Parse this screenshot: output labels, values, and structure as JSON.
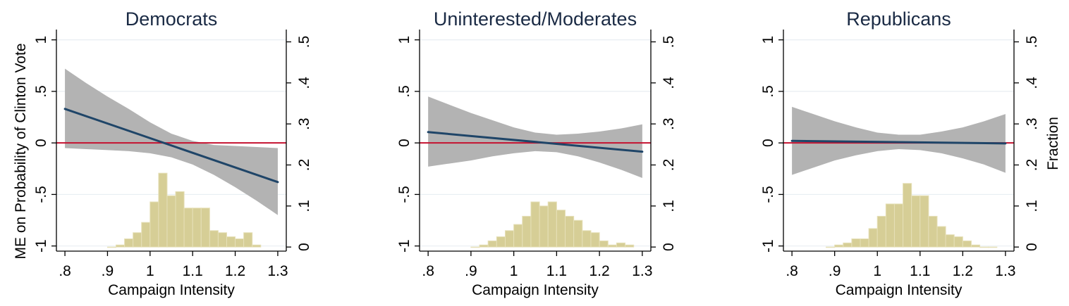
{
  "figure": {
    "ylabel_left": "ME on Probability of Clinton Vote",
    "ylabel_right": "Fraction"
  },
  "colors": {
    "line": "#1f4568",
    "ci": "#b3b3b3",
    "zero_line": "#c41230",
    "bars": "#d6ce96",
    "bar_edge": "#e6e0b8",
    "grid": "#e8eef2"
  },
  "chart_data": [
    {
      "type": "line",
      "title": "Democrats",
      "xlabel": "Campaign Intensity",
      "xlim": [
        0.78,
        1.32
      ],
      "ylim": [
        -1.05,
        1.1
      ],
      "y2lim": [
        -0.01,
        0.53
      ],
      "xticks": [
        0.8,
        0.9,
        1.0,
        1.1,
        1.2,
        1.3
      ],
      "xtick_labels": [
        ".8",
        ".9",
        "1",
        "1.1",
        "1.2",
        "1.3"
      ],
      "yticks": [
        -1,
        -0.5,
        0,
        0.5,
        1
      ],
      "ytick_labels": [
        "-1",
        "-.5",
        "0",
        ".5",
        "1"
      ],
      "y2ticks": [
        0,
        0.1,
        0.2,
        0.3,
        0.4,
        0.5
      ],
      "y2tick_labels": [
        "0",
        ".1",
        ".2",
        ".3",
        ".4",
        ".5"
      ],
      "ci_x": [
        0.8,
        0.85,
        0.9,
        0.95,
        1.0,
        1.05,
        1.1,
        1.15,
        1.2,
        1.25,
        1.3
      ],
      "ci_upper": [
        0.72,
        0.58,
        0.45,
        0.33,
        0.2,
        0.09,
        0.02,
        -0.02,
        -0.03,
        -0.04,
        -0.05
      ],
      "ci_lower": [
        -0.05,
        -0.06,
        -0.07,
        -0.08,
        -0.1,
        -0.14,
        -0.21,
        -0.31,
        -0.43,
        -0.56,
        -0.7
      ],
      "line_x": [
        0.8,
        1.3
      ],
      "line_y": [
        0.33,
        -0.38
      ],
      "hist": [
        {
          "x": 0.91,
          "f": 0.0
        },
        {
          "x": 0.93,
          "f": 0.005
        },
        {
          "x": 0.95,
          "f": 0.02
        },
        {
          "x": 0.97,
          "f": 0.035
        },
        {
          "x": 0.99,
          "f": 0.06
        },
        {
          "x": 1.01,
          "f": 0.11
        },
        {
          "x": 1.03,
          "f": 0.18
        },
        {
          "x": 1.05,
          "f": 0.125
        },
        {
          "x": 1.07,
          "f": 0.135
        },
        {
          "x": 1.09,
          "f": 0.095
        },
        {
          "x": 1.11,
          "f": 0.095
        },
        {
          "x": 1.13,
          "f": 0.095
        },
        {
          "x": 1.15,
          "f": 0.04
        },
        {
          "x": 1.17,
          "f": 0.035
        },
        {
          "x": 1.19,
          "f": 0.025
        },
        {
          "x": 1.21,
          "f": 0.02
        },
        {
          "x": 1.23,
          "f": 0.035
        },
        {
          "x": 1.25,
          "f": 0.005
        }
      ]
    },
    {
      "type": "line",
      "title": "Uninterested/Moderates",
      "xlabel": "Campaign Intensity",
      "xlim": [
        0.78,
        1.32
      ],
      "ylim": [
        -1.05,
        1.1
      ],
      "y2lim": [
        -0.01,
        0.53
      ],
      "xticks": [
        0.8,
        0.9,
        1.0,
        1.1,
        1.2,
        1.3
      ],
      "xtick_labels": [
        ".8",
        ".9",
        "1",
        "1.1",
        "1.2",
        "1.3"
      ],
      "yticks": [
        -1,
        -0.5,
        0,
        0.5,
        1
      ],
      "ytick_labels": [
        "-1",
        "-.5",
        "0",
        ".5",
        "1"
      ],
      "y2ticks": [
        0,
        0.1,
        0.2,
        0.3,
        0.4,
        0.5
      ],
      "y2tick_labels": [
        "0",
        ".1",
        ".2",
        ".3",
        ".4",
        ".5"
      ],
      "ci_x": [
        0.8,
        0.85,
        0.9,
        0.95,
        1.0,
        1.05,
        1.1,
        1.15,
        1.2,
        1.25,
        1.3
      ],
      "ci_upper": [
        0.45,
        0.37,
        0.29,
        0.22,
        0.15,
        0.1,
        0.08,
        0.09,
        0.11,
        0.14,
        0.18
      ],
      "ci_lower": [
        -0.23,
        -0.2,
        -0.17,
        -0.13,
        -0.1,
        -0.08,
        -0.09,
        -0.13,
        -0.19,
        -0.26,
        -0.34
      ],
      "line_x": [
        0.8,
        1.3
      ],
      "line_y": [
        0.105,
        -0.085
      ],
      "hist": [
        {
          "x": 0.91,
          "f": 0.0
        },
        {
          "x": 0.93,
          "f": 0.005
        },
        {
          "x": 0.95,
          "f": 0.015
        },
        {
          "x": 0.97,
          "f": 0.025
        },
        {
          "x": 0.99,
          "f": 0.04
        },
        {
          "x": 1.01,
          "f": 0.055
        },
        {
          "x": 1.03,
          "f": 0.075
        },
        {
          "x": 1.05,
          "f": 0.11
        },
        {
          "x": 1.07,
          "f": 0.1
        },
        {
          "x": 1.09,
          "f": 0.11
        },
        {
          "x": 1.11,
          "f": 0.09
        },
        {
          "x": 1.13,
          "f": 0.075
        },
        {
          "x": 1.15,
          "f": 0.065
        },
        {
          "x": 1.17,
          "f": 0.04
        },
        {
          "x": 1.19,
          "f": 0.035
        },
        {
          "x": 1.21,
          "f": 0.015
        },
        {
          "x": 1.23,
          "f": 0.005
        },
        {
          "x": 1.25,
          "f": 0.01
        },
        {
          "x": 1.27,
          "f": 0.005
        }
      ]
    },
    {
      "type": "line",
      "title": "Republicans",
      "xlabel": "Campaign Intensity",
      "xlim": [
        0.78,
        1.32
      ],
      "ylim": [
        -1.05,
        1.1
      ],
      "y2lim": [
        -0.01,
        0.53
      ],
      "xticks": [
        0.8,
        0.9,
        1.0,
        1.1,
        1.2,
        1.3
      ],
      "xtick_labels": [
        ".8",
        ".9",
        "1",
        "1.1",
        "1.2",
        "1.3"
      ],
      "yticks": [
        -1,
        -0.5,
        0,
        0.5,
        1
      ],
      "ytick_labels": [
        "-1",
        "-.5",
        "0",
        ".5",
        "1"
      ],
      "y2ticks": [
        0,
        0.1,
        0.2,
        0.3,
        0.4,
        0.5
      ],
      "y2tick_labels": [
        "0",
        ".1",
        ".2",
        ".3",
        ".4",
        ".5"
      ],
      "ci_x": [
        0.8,
        0.85,
        0.9,
        0.95,
        1.0,
        1.05,
        1.1,
        1.15,
        1.2,
        1.25,
        1.3
      ],
      "ci_upper": [
        0.35,
        0.28,
        0.21,
        0.15,
        0.1,
        0.08,
        0.08,
        0.11,
        0.15,
        0.21,
        0.28
      ],
      "ci_lower": [
        -0.31,
        -0.24,
        -0.17,
        -0.12,
        -0.08,
        -0.06,
        -0.07,
        -0.1,
        -0.15,
        -0.21,
        -0.29
      ],
      "line_x": [
        0.8,
        1.3
      ],
      "line_y": [
        0.02,
        -0.005
      ],
      "hist": [
        {
          "x": 0.89,
          "f": 0.0
        },
        {
          "x": 0.91,
          "f": 0.005
        },
        {
          "x": 0.93,
          "f": 0.01
        },
        {
          "x": 0.95,
          "f": 0.02
        },
        {
          "x": 0.97,
          "f": 0.02
        },
        {
          "x": 0.99,
          "f": 0.045
        },
        {
          "x": 1.01,
          "f": 0.075
        },
        {
          "x": 1.03,
          "f": 0.105
        },
        {
          "x": 1.05,
          "f": 0.105
        },
        {
          "x": 1.07,
          "f": 0.155
        },
        {
          "x": 1.09,
          "f": 0.125
        },
        {
          "x": 1.11,
          "f": 0.125
        },
        {
          "x": 1.13,
          "f": 0.075
        },
        {
          "x": 1.15,
          "f": 0.05
        },
        {
          "x": 1.17,
          "f": 0.03
        },
        {
          "x": 1.19,
          "f": 0.025
        },
        {
          "x": 1.21,
          "f": 0.015
        },
        {
          "x": 1.23,
          "f": 0.005
        },
        {
          "x": 1.25,
          "f": 0.0
        },
        {
          "x": 1.27,
          "f": 0.0
        }
      ]
    }
  ]
}
